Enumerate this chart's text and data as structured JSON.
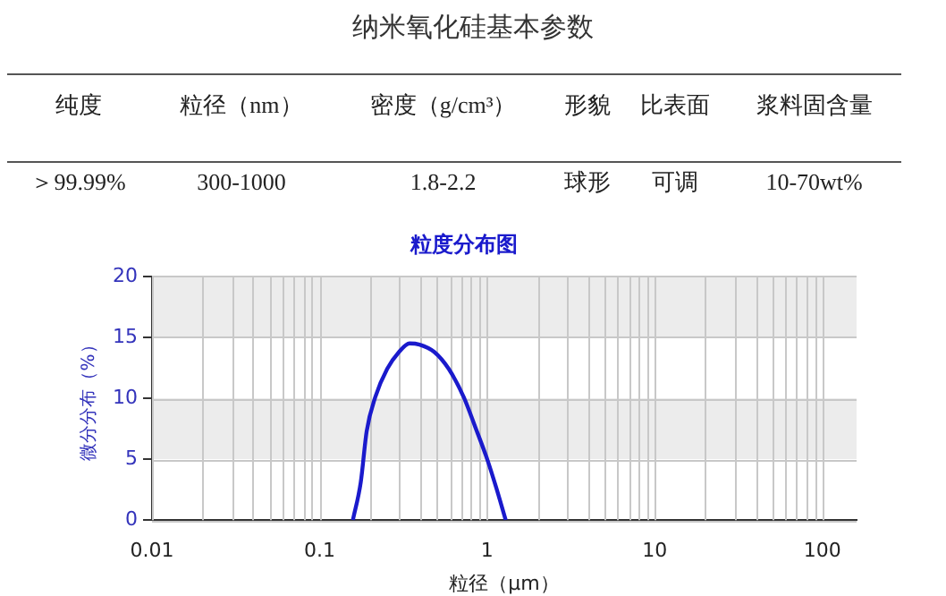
{
  "chart_data": [
    {
      "type": "other",
      "title": "纳米氧化硅基本参数",
      "annotations": [
        "纯度",
        "粒径（nm）",
        "密度（g/cm³）",
        "形貌",
        "比表面",
        "浆料固含量",
        "＞99.99%",
        "300-1000",
        "1.8-2.2",
        "球形",
        "可调",
        "10-70wt%"
      ]
    },
    {
      "type": "line",
      "title": "粒度分布图",
      "xlabel": "粒径（μm）",
      "ylabel": "微分分布（%）",
      "log": "x",
      "x": [
        0.158,
        0.176,
        0.191,
        0.215,
        0.253,
        0.298,
        0.344,
        0.395,
        0.483,
        0.59,
        0.724,
        0.851,
        1.0,
        1.13,
        1.29
      ],
      "series": [
        {
          "color": "#1a1acc",
          "values": [
            0,
            3.1,
            7.3,
            10.1,
            12.4,
            13.8,
            14.5,
            14.4,
            13.8,
            12.4,
            10.1,
            7.6,
            5.0,
            2.7,
            0
          ]
        }
      ],
      "xlim": [
        0.01,
        160
      ],
      "xticks": [
        0.01,
        0.1,
        1,
        10,
        100
      ],
      "ylim": [
        0,
        20
      ],
      "yticks": [
        0,
        5,
        10,
        15,
        20
      ],
      "bands": [
        {
          "axis": "y",
          "from": 5,
          "to": 10,
          "color": "#ececec"
        },
        {
          "axis": "y",
          "from": 15,
          "to": 20,
          "color": "#ececec"
        }
      ],
      "grid": true,
      "legend": false,
      "marker": "none",
      "line_style": "solid"
    }
  ]
}
